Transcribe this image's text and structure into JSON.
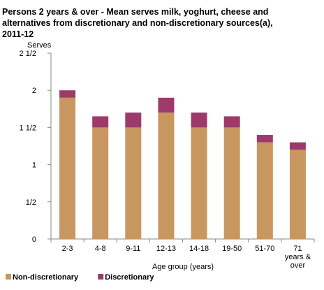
{
  "chart_data": {
    "type": "bar",
    "stacked": true,
    "title": "Persons 2 years  & over - Mean serves  milk, yoghurt, cheese and\nalternatives from discretionary  and non-discretionary  sources(a),\n2011-12",
    "ylabel": "Serves",
    "xlabel": "Age group (years)",
    "categories": [
      "2-3",
      "4-8",
      "9-11",
      "12-13",
      "14-18",
      "19-50",
      "51-70",
      "71\nyears &\nover"
    ],
    "ylim": [
      0,
      2.5
    ],
    "yticks": [
      {
        "value": 0,
        "label": "0"
      },
      {
        "value": 0.5,
        "label": "1/2"
      },
      {
        "value": 1,
        "label": "1"
      },
      {
        "value": 1.5,
        "label": "1 1/2"
      },
      {
        "value": 2,
        "label": "2"
      },
      {
        "value": 2.5,
        "label": "2 1/2"
      }
    ],
    "series": [
      {
        "name": "Non-discretionary",
        "color": "#c8965f",
        "values": [
          1.9,
          1.5,
          1.5,
          1.7,
          1.5,
          1.5,
          1.3,
          1.2
        ]
      },
      {
        "name": "Discretionary",
        "color": "#9e3a6a",
        "values": [
          0.1,
          0.15,
          0.2,
          0.2,
          0.2,
          0.15,
          0.1,
          0.1
        ]
      }
    ],
    "legend_position": "bottom-left",
    "grid": false
  }
}
